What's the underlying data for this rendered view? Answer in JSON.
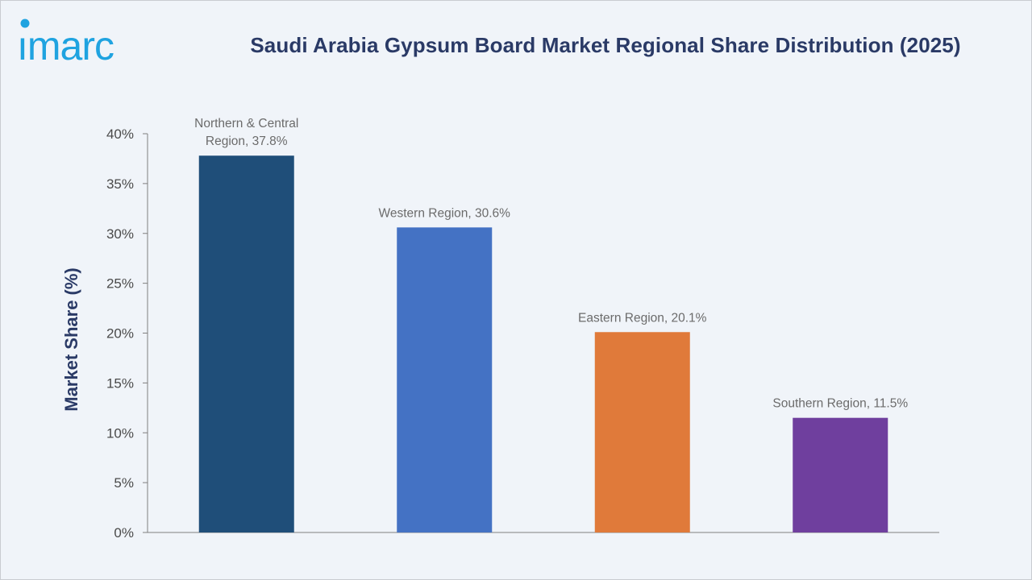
{
  "header": {
    "logo_text": "imarc",
    "title": "Saudi Arabia Gypsum Board Market Regional Share Distribution (2025)"
  },
  "colors": {
    "background": "#f0f4f9",
    "title": "#2a3a66",
    "logo": "#1fa3e0",
    "axis": "#7f7f7f"
  },
  "chart_data": {
    "type": "bar",
    "title": "Saudi Arabia Gypsum Board Market Regional Share Distribution (2025)",
    "xlabel": "",
    "ylabel": "Market Share (%)",
    "ylim": [
      0,
      40
    ],
    "yticks": [
      0,
      5,
      10,
      15,
      20,
      25,
      30,
      35,
      40
    ],
    "ytick_labels": [
      "0%",
      "5%",
      "10%",
      "15%",
      "20%",
      "25%",
      "30%",
      "35%",
      "40%"
    ],
    "grid": false,
    "categories": [
      "Northern & Central Region",
      "Western Region",
      "Eastern Region",
      "Southern Region"
    ],
    "values": [
      37.8,
      30.6,
      20.1,
      11.5
    ],
    "data_labels": [
      [
        "Northern & Central",
        "Region, 37.8%"
      ],
      [
        "Western Region, 30.6%"
      ],
      [
        "Eastern Region, 20.1%"
      ],
      [
        "Southern Region, 11.5%"
      ]
    ],
    "bar_colors": [
      "#1f4e79",
      "#4472c4",
      "#e07a3a",
      "#6f3f9e"
    ]
  }
}
